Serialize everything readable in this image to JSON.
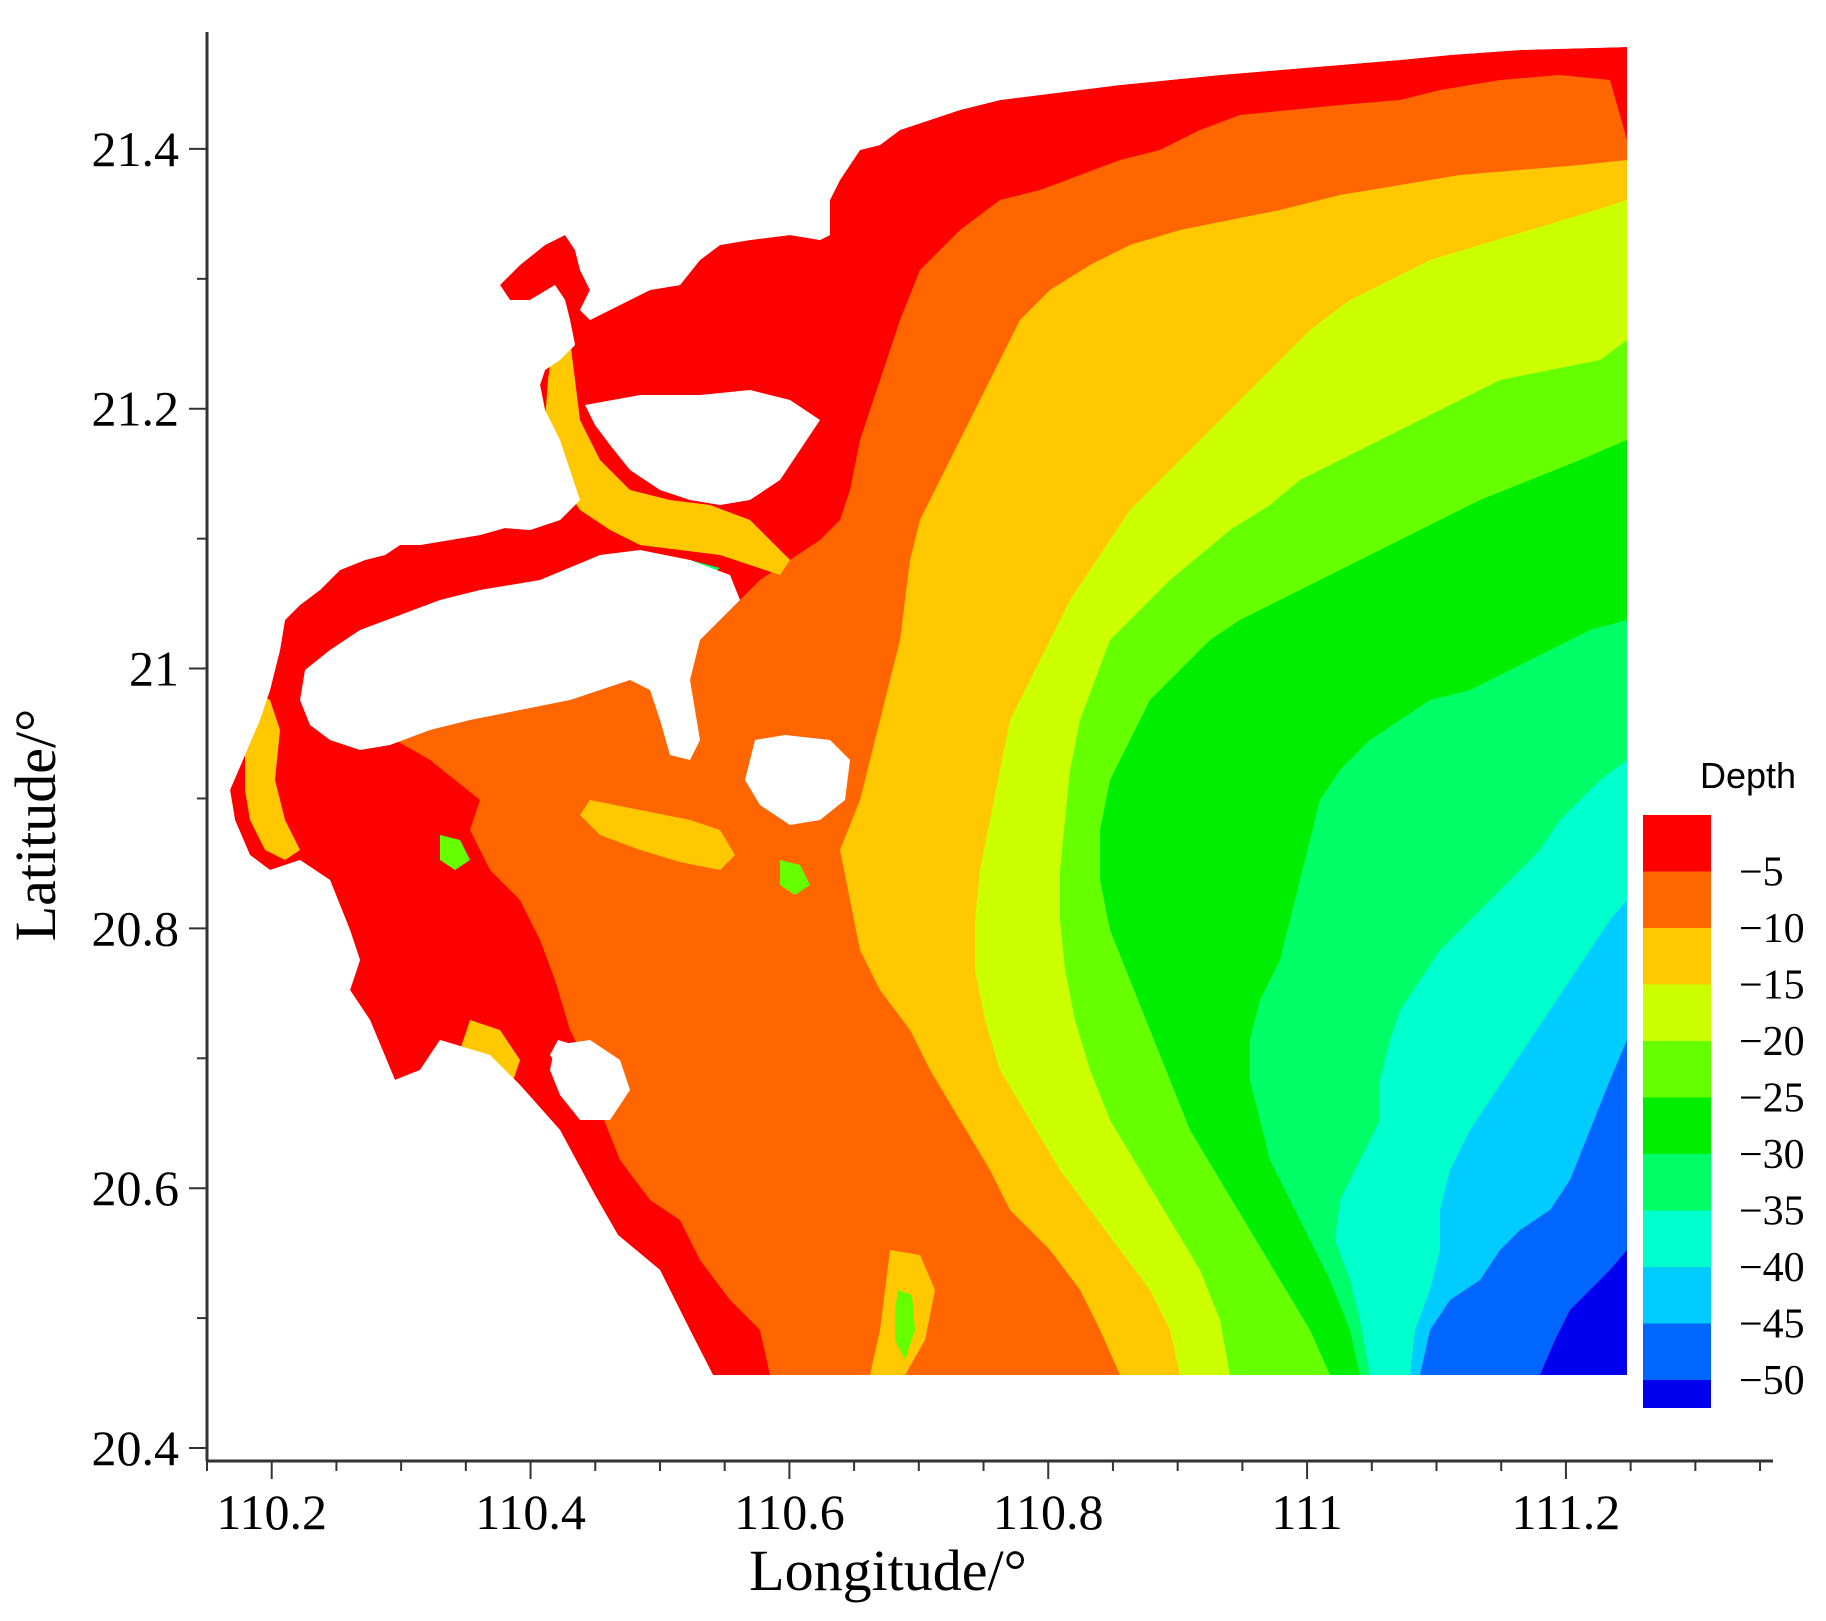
{
  "map": {
    "x_axis": {
      "title": "Longitude/°",
      "range": [
        110.15,
        111.36
      ],
      "major_ticks": [
        110.2,
        110.4,
        110.6,
        110.8,
        111,
        111.2
      ],
      "tick_labels": [
        "110.2",
        "110.4",
        "110.6",
        "110.8",
        "111",
        "111.2"
      ]
    },
    "y_axis": {
      "title": "Latitude/°",
      "range": [
        20.39,
        21.49
      ],
      "major_ticks": [
        20.4,
        20.6,
        20.8,
        21,
        21.2,
        21.4
      ],
      "tick_labels": [
        "20.4",
        "20.6",
        "20.8",
        "21",
        "21.2",
        "21.4"
      ]
    },
    "legend": {
      "title": "Depth",
      "placement": "right",
      "levels": [
        {
          "label": "−5",
          "color": "#ff0000"
        },
        {
          "label": "−10",
          "color": "#ff6600"
        },
        {
          "label": "−15",
          "color": "#ffc800"
        },
        {
          "label": "−20",
          "color": "#ccff00"
        },
        {
          "label": "−25",
          "color": "#66ff00"
        },
        {
          "label": "−30",
          "color": "#00ee00"
        },
        {
          "label": "−35",
          "color": "#00ff66"
        },
        {
          "label": "−40",
          "color": "#00ffcc"
        },
        {
          "label": "−45",
          "color": "#00ccff"
        },
        {
          "label": "−50",
          "color": "#0066ff"
        }
      ],
      "bottom_color": "#0000ee"
    }
  }
}
